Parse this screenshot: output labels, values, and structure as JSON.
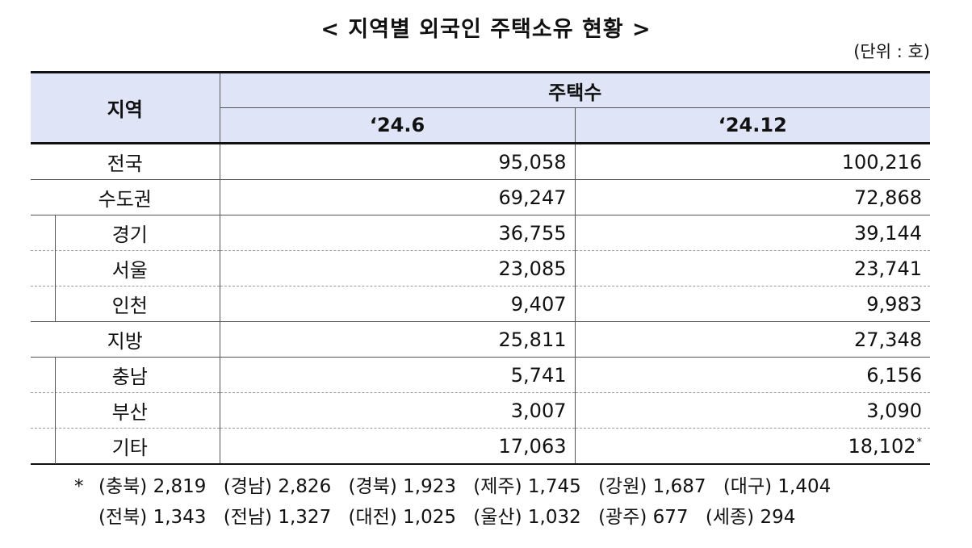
{
  "title": "< 지역별 외국인 주택소유 현황 >",
  "unit": "(단위 : 호)",
  "table": {
    "header": {
      "region": "지역",
      "housing": "주택수",
      "periods": [
        "‘24.6",
        "‘24.12"
      ]
    },
    "rows": [
      {
        "name": "전국",
        "v1": "95,058",
        "v2": "100,216"
      },
      {
        "name": "수도권",
        "v1": "69,247",
        "v2": "72,868"
      },
      {
        "name": "경기",
        "v1": "36,755",
        "v2": "39,144"
      },
      {
        "name": "서울",
        "v1": "23,085",
        "v2": "23,741"
      },
      {
        "name": "인천",
        "v1": "9,407",
        "v2": "9,983"
      },
      {
        "name": "지방",
        "v1": "25,811",
        "v2": "27,348"
      },
      {
        "name": "충남",
        "v1": "5,741",
        "v2": "6,156"
      },
      {
        "name": "부산",
        "v1": "3,007",
        "v2": "3,090"
      },
      {
        "name": "기타",
        "v1": "17,063",
        "v2": "18,102",
        "v2_mark": "*"
      }
    ]
  },
  "footnote": {
    "mark": "*",
    "line1": [
      {
        "region": "(충북)",
        "value": "2,819"
      },
      {
        "region": "(경남)",
        "value": "2,826"
      },
      {
        "region": "(경북)",
        "value": "1,923"
      },
      {
        "region": "(제주)",
        "value": "1,745"
      },
      {
        "region": "(강원)",
        "value": "1,687"
      },
      {
        "region": "(대구)",
        "value": "1,404"
      }
    ],
    "line2": [
      {
        "region": "(전북)",
        "value": "1,343"
      },
      {
        "region": "(전남)",
        "value": "1,327"
      },
      {
        "region": "(대전)",
        "value": "1,025"
      },
      {
        "region": "(울산)",
        "value": "1,032"
      },
      {
        "region": "(광주)",
        "value": "677"
      },
      {
        "region": "(세종)",
        "value": "294"
      }
    ]
  }
}
